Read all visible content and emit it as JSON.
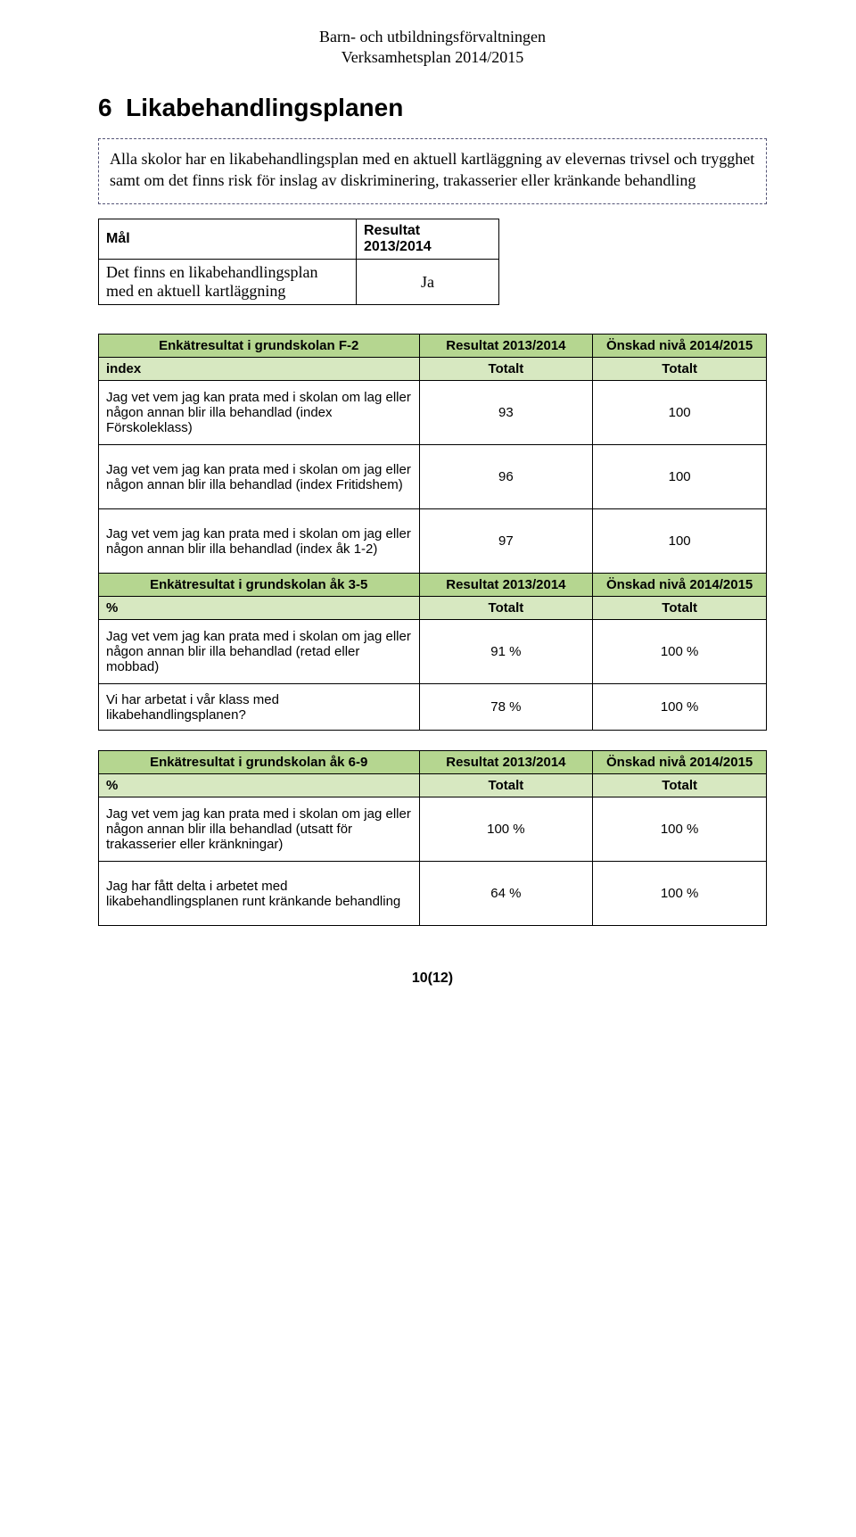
{
  "header": {
    "line1": "Barn- och utbildningsförvaltningen",
    "line2": "Verksamhetsplan 2014/2015"
  },
  "section": {
    "number": "6",
    "title": "Likabehandlingsplanen"
  },
  "intro": "Alla skolor har en likabehandlingsplan med en aktuell kartläggning av elevernas trivsel och trygghet samt om det finns risk för inslag av diskriminering, trakasserier eller kränkande behandling",
  "goal_table": {
    "col1": "Mål",
    "col2": "Resultat 2013/2014",
    "row_label": "Det finns en likabehandlingsplan med en aktuell kartläggning",
    "row_value": "Ja"
  },
  "colors": {
    "header_green": "#b5d690",
    "sub_green": "#d7e8c1"
  },
  "table1": {
    "h_label": "Enkätresultat i grundskolan F-2",
    "h_res": "Resultat 2013/2014",
    "h_goal": "Önskad nivå 2014/2015",
    "sub_label": "index",
    "sub_res": "Totalt",
    "sub_goal": "Totalt",
    "rows": [
      {
        "label": "Jag vet vem jag kan prata med i skolan om lag eller någon annan blir illa behandlad (index Förskoleklass)",
        "res": "93",
        "goal": "100"
      },
      {
        "label": "Jag vet vem jag kan prata med i skolan om jag eller någon annan blir illa behandlad (index Fritidshem)",
        "res": "96",
        "goal": "100"
      },
      {
        "label": "Jag vet vem jag kan prata med i skolan om jag eller någon annan blir illa behandlad (index åk 1-2)",
        "res": "97",
        "goal": "100"
      }
    ],
    "h2_label": "Enkätresultat i grundskolan åk 3-5",
    "h2_res": "Resultat 2013/2014",
    "h2_goal": "Önskad nivå 2014/2015",
    "sub2_label": "%",
    "sub2_res": "Totalt",
    "sub2_goal": "Totalt",
    "rows2": [
      {
        "label": "Jag vet vem jag kan prata med i skolan om jag eller någon annan blir illa behandlad (retad eller mobbad)",
        "res": "91 %",
        "goal": "100 %"
      },
      {
        "label": "Vi har arbetat i vår klass med likabehandlingsplanen?",
        "res": "78 %",
        "goal": "100 %"
      }
    ]
  },
  "table2": {
    "h_label": "Enkätresultat i grundskolan åk 6-9",
    "h_res": "Resultat 2013/2014",
    "h_goal": "Önskad nivå 2014/2015",
    "sub_label": "%",
    "sub_res": "Totalt",
    "sub_goal": "Totalt",
    "rows": [
      {
        "label": "Jag vet vem jag kan prata med i skolan om jag eller någon annan blir illa behandlad (utsatt för trakasserier eller kränkningar)",
        "res": "100 %",
        "goal": "100 %"
      },
      {
        "label": "Jag har fått delta i arbetet med likabehandlingsplanen runt kränkande behandling",
        "res": "64 %",
        "goal": "100 %"
      }
    ]
  },
  "page_number": "10(12)"
}
